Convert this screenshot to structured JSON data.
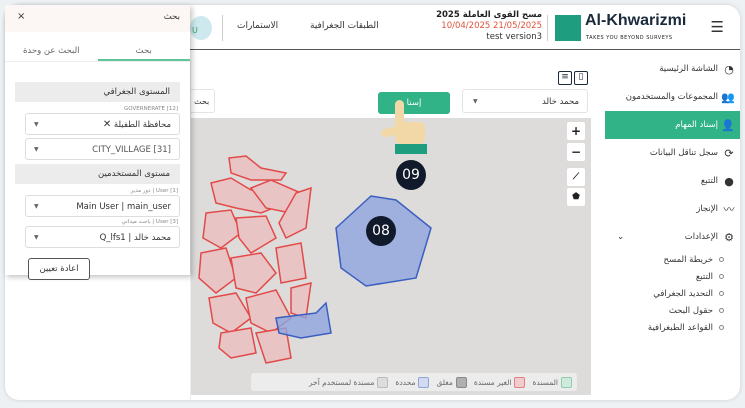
{
  "header": {
    "menu_icon": "hamburger-icon",
    "logo_name": "Al-Khwarizmi",
    "logo_tagline": "TAKES YOU BEYOND SURVEYS",
    "survey_title": "مسح القوى العاملة 2025",
    "survey_dates": "21/05/2025 10/04/2025",
    "survey_version": "test version3",
    "nav": [
      "الطبقات الجغرافية",
      "الاستمارات"
    ],
    "avatar_text": "U"
  },
  "sidebar": {
    "items": [
      {
        "label": "الشاشة الرئيسية",
        "icon": "gauge-icon"
      },
      {
        "label": "المجموعات والمستخدمون",
        "icon": "users-icon"
      },
      {
        "label": "إسناد المهام",
        "icon": "user-check-icon",
        "active": true
      },
      {
        "label": "سجل تناقل البيانات",
        "icon": "sync-icon"
      },
      {
        "label": "التتبع",
        "icon": "user-circle-icon"
      },
      {
        "label": "الإنجاز",
        "icon": "trend-icon"
      },
      {
        "label": "الإعدادات",
        "icon": "gear-icon"
      }
    ],
    "sub_items": [
      "خريطة المسح",
      "التتبع",
      "التحديد الجغرافي",
      "حقول البحث",
      "القواعد الطبغرافية"
    ]
  },
  "main": {
    "user_select": "محمد خالد",
    "assign_button": "إسنا",
    "search_button": "بحث",
    "list_view_icon": "list-icon",
    "map_view_icon": "map-icon"
  },
  "map": {
    "zoom_in": "+",
    "zoom_out": "−",
    "badges": [
      "09",
      "08"
    ],
    "legend": [
      {
        "label": "المسندة",
        "color": "#cfe9dc",
        "border": "#8fcfb0"
      },
      {
        "label": "الغير مسندة",
        "color": "#f1cccc",
        "border": "#e08080"
      },
      {
        "label": "مغلق",
        "color": "#b0aeb0",
        "border": "#8a8a8a"
      },
      {
        "label": "محددة",
        "color": "#d3dbf0",
        "border": "#8fa5d8"
      },
      {
        "label": "مسندة لمستخدم آخر",
        "color": "#dddddd",
        "border": "#bbbbbb"
      }
    ]
  },
  "panel": {
    "title": "بحث",
    "close": "×",
    "tabs": [
      "بحث",
      "البحث عن وحدة"
    ],
    "geo_section": "المستوى الجغرافي",
    "gov_label": "GOVERNERATE [12]",
    "gov_value": "محافظة الطفيلة",
    "city_value": "CITY_VILLAGE [31]",
    "users_section": "مستوى المستخدمين",
    "user1_label": "User [1] | دور مدير",
    "user1_value": "Main User | main_user",
    "user2_label": "User [3] | باحث ميداني",
    "user2_value": "محمد خالد | Q_lfs1",
    "reset": "اعادة تعيين"
  }
}
